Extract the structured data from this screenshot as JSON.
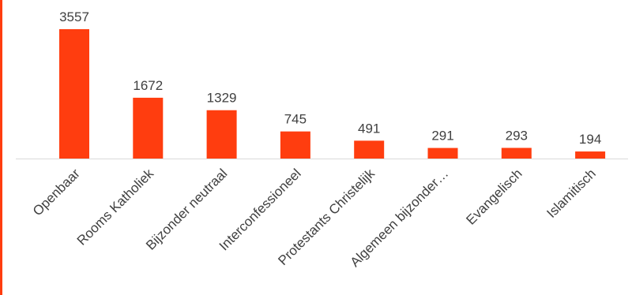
{
  "colors": {
    "bar": "#ff3d0f",
    "axis": "#d9d9d9",
    "edge": "#ff3d0f",
    "text": "#404040"
  },
  "chart_data": {
    "type": "bar",
    "categories": [
      "Openbaar",
      "Rooms Katholiek",
      "Bijzonder neutraal",
      "Interconfessioneel",
      "Protestants Christelijk",
      "Algemeen bijzonder…",
      "Evangelisch",
      "Islamitisch"
    ],
    "values": [
      3557,
      1672,
      1329,
      745,
      491,
      291,
      293,
      194
    ],
    "data_labels": [
      "3557",
      "1672",
      "1329",
      "745",
      "491",
      "291",
      "293",
      "194"
    ],
    "title": "",
    "xlabel": "",
    "ylabel": "",
    "ylim": [
      0,
      3557
    ],
    "grid": false,
    "legend": "none"
  }
}
